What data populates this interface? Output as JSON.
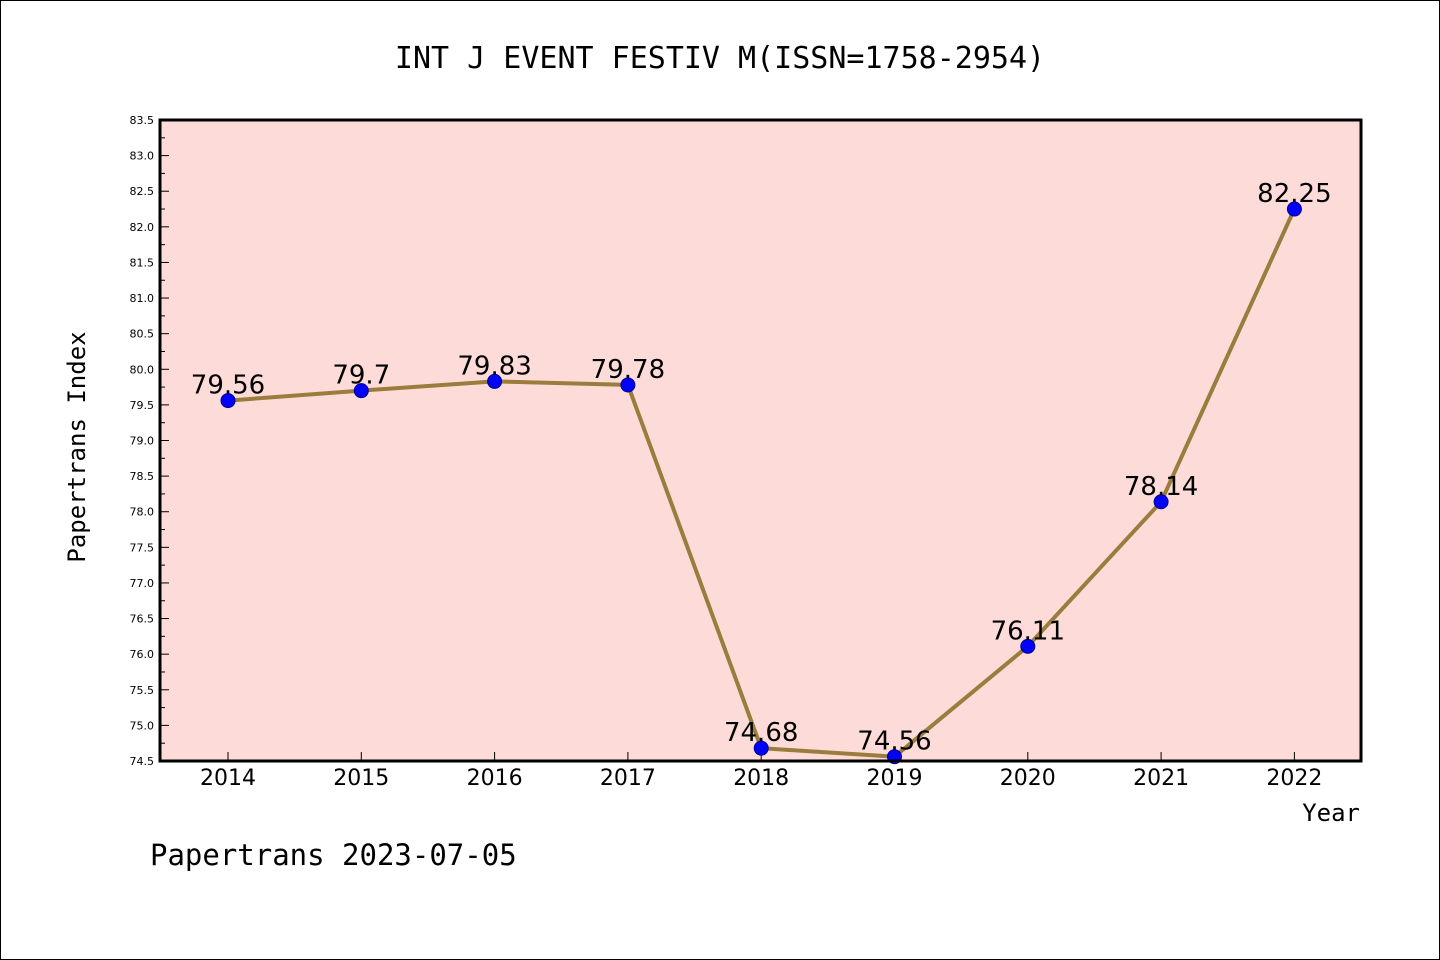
{
  "colors": {
    "plot_background": "#fddbd8",
    "line": "#9a7d3c",
    "marker": "#0000ff",
    "frame": "#000000"
  },
  "footer": {
    "text": "Papertrans 2023-07-05"
  },
  "chart_data": {
    "type": "line",
    "title": "INT J EVENT FESTIV M(ISSN=1758-2954)",
    "xlabel": "Year",
    "ylabel": "Papertrans Index",
    "ylim": [
      74.5,
      83.5
    ],
    "y_tick_step": 0.5,
    "grid": false,
    "legend": "none",
    "categories": [
      "2014",
      "2015",
      "2016",
      "2017",
      "2018",
      "2019",
      "2020",
      "2021",
      "2022"
    ],
    "series": [
      {
        "values": [
          79.56,
          79.7,
          79.83,
          79.78,
          74.68,
          74.56,
          76.11,
          78.14,
          82.25
        ],
        "labels": [
          "79.56",
          "79.7",
          "79.83",
          "79.78",
          "74.68",
          "74.56",
          "76.11",
          "78.14",
          "82.25"
        ]
      }
    ]
  }
}
